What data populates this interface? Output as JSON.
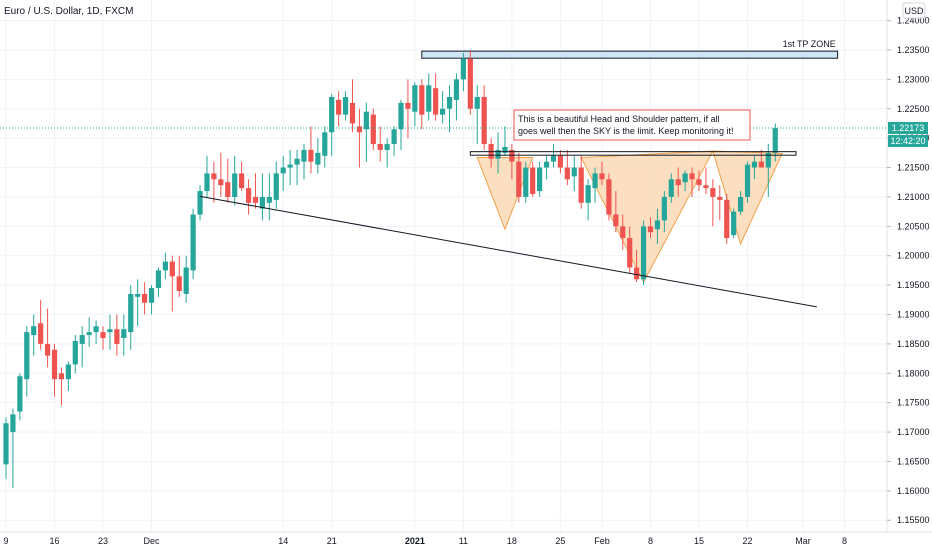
{
  "header": {
    "symbol_title": "Euro / U.S. Dollar, 1D, FXCM",
    "currency_badge": "USD"
  },
  "price_axis": {
    "ticks": [
      "1.24000",
      "1.23500",
      "1.23000",
      "1.22500",
      "1.22000",
      "1.21500",
      "1.21000",
      "1.20500",
      "1.20000",
      "1.19500",
      "1.19000",
      "1.18500",
      "1.18000",
      "1.17500",
      "1.17000",
      "1.16500",
      "1.16000",
      "1.15500"
    ],
    "tick_values": [
      1.24,
      1.235,
      1.23,
      1.225,
      1.22,
      1.215,
      1.21,
      1.205,
      1.2,
      1.195,
      1.19,
      1.185,
      1.18,
      1.175,
      1.17,
      1.165,
      1.16,
      1.155
    ],
    "last_price_label": "1.22173",
    "last_price_value": 1.22173,
    "countdown_label": "12:42:20"
  },
  "time_axis": {
    "labels": [
      "9",
      "16",
      "23",
      "Dec",
      "14",
      "21",
      "2021",
      "11",
      "18",
      "25",
      "Feb",
      "8",
      "15",
      "22",
      "Mar",
      "8"
    ],
    "bar_index": [
      0,
      7,
      14,
      21,
      40,
      47,
      59,
      66,
      73,
      80,
      86,
      93,
      100,
      107,
      115,
      121
    ]
  },
  "annotations": {
    "tp_zone_label": "1st TP ZONE",
    "tp_zone": {
      "x_from_bar": 60,
      "x_to_bar": 120,
      "price_low": 1.2336,
      "price_high": 1.2348
    },
    "neckline_zone": {
      "x_from_bar": 67,
      "x_to_bar": 114,
      "price_low": 1.2171,
      "price_high": 1.2177
    },
    "callout_lines": [
      "This is a beautiful  Head and Shoulder pattern, if all",
      "goes well then the SKY is the limit. Keep monitoring it!"
    ],
    "trendline": {
      "from_bar": 28,
      "from_price": 1.2101,
      "to_bar": 117,
      "to_price": 1.1913
    },
    "pattern_triangles": [
      {
        "bar_a": 68,
        "price_a": 1.2167,
        "bar_b": 72,
        "price_b": 1.2045,
        "bar_c": 76,
        "price_c": 1.2167
      },
      {
        "bar_a": 83,
        "price_a": 1.2167,
        "bar_b": 92,
        "price_b": 1.1955,
        "bar_c": 102,
        "price_c": 1.2178
      },
      {
        "bar_a": 102,
        "price_a": 1.2178,
        "bar_b": 106,
        "price_b": 1.202,
        "bar_c": 112,
        "price_c": 1.2174
      }
    ]
  },
  "colors": {
    "up": "#26a69a",
    "down": "#ef5350",
    "grid": "#f0f3fa",
    "axis_text": "#131722",
    "last_price_badge": "#26a69a",
    "tp_zone_fill": "#cfe6f7",
    "pattern_fill": "#fbd9b5",
    "pattern_stroke": "#f2a24a",
    "callout_border": "#ef5350"
  },
  "chart_data": {
    "type": "candlestick",
    "title": "Euro / U.S. Dollar, 1D, FXCM",
    "ylim": [
      1.153,
      1.2435
    ],
    "grid": true,
    "candles": [
      [
        1.1645,
        1.1725,
        1.162,
        1.1715
      ],
      [
        1.17,
        1.174,
        1.1605,
        1.173
      ],
      [
        1.1735,
        1.18,
        1.172,
        1.1795
      ],
      [
        1.179,
        1.188,
        1.176,
        1.187
      ],
      [
        1.1865,
        1.19,
        1.183,
        1.188
      ],
      [
        1.1885,
        1.1925,
        1.184,
        1.185
      ],
      [
        1.185,
        1.191,
        1.181,
        1.183
      ],
      [
        1.184,
        1.185,
        1.176,
        1.179
      ],
      [
        1.18,
        1.181,
        1.1745,
        1.179
      ],
      [
        1.179,
        1.182,
        1.177,
        1.1815
      ],
      [
        1.1815,
        1.1865,
        1.18,
        1.1855
      ],
      [
        1.185,
        1.188,
        1.181,
        1.1865
      ],
      [
        1.1865,
        1.1895,
        1.1845,
        1.187
      ],
      [
        1.187,
        1.189,
        1.185,
        1.188
      ],
      [
        1.187,
        1.188,
        1.184,
        1.186
      ],
      [
        1.187,
        1.19,
        1.184,
        1.1875
      ],
      [
        1.1875,
        1.19,
        1.183,
        1.185
      ],
      [
        1.186,
        1.19,
        1.183,
        1.1875
      ],
      [
        1.187,
        1.195,
        1.184,
        1.1935
      ],
      [
        1.193,
        1.196,
        1.188,
        1.1935
      ],
      [
        1.1935,
        1.1955,
        1.19,
        1.192
      ],
      [
        1.192,
        1.195,
        1.19,
        1.1945
      ],
      [
        1.1945,
        1.198,
        1.193,
        1.1975
      ],
      [
        1.1975,
        1.2005,
        1.196,
        1.199
      ],
      [
        1.199,
        1.2,
        1.1905,
        1.1965
      ],
      [
        1.1965,
        1.2,
        1.193,
        1.194
      ],
      [
        1.1935,
        1.2,
        1.192,
        1.198
      ],
      [
        1.1975,
        1.208,
        1.196,
        1.207
      ],
      [
        1.207,
        1.212,
        1.206,
        1.211
      ],
      [
        1.211,
        1.217,
        1.21,
        1.214
      ],
      [
        1.214,
        1.216,
        1.209,
        1.213
      ],
      [
        1.213,
        1.2175,
        1.21,
        1.212
      ],
      [
        1.2125,
        1.2165,
        1.209,
        1.21
      ],
      [
        1.21,
        1.217,
        1.2085,
        1.214
      ],
      [
        1.214,
        1.216,
        1.211,
        1.2115
      ],
      [
        1.2115,
        1.213,
        1.207,
        1.209
      ],
      [
        1.21,
        1.214,
        1.208,
        1.209
      ],
      [
        1.208,
        1.214,
        1.206,
        1.21
      ],
      [
        1.209,
        1.214,
        1.206,
        1.21
      ],
      [
        1.2095,
        1.216,
        1.208,
        1.214
      ],
      [
        1.214,
        1.217,
        1.211,
        1.215
      ],
      [
        1.215,
        1.218,
        1.212,
        1.2155
      ],
      [
        1.2155,
        1.218,
        1.212,
        1.2165
      ],
      [
        1.216,
        1.219,
        1.213,
        1.218
      ],
      [
        1.218,
        1.222,
        1.214,
        1.216
      ],
      [
        1.2155,
        1.22,
        1.214,
        1.2175
      ],
      [
        1.217,
        1.222,
        1.215,
        1.221
      ],
      [
        1.221,
        1.2275,
        1.217,
        1.227
      ],
      [
        1.2265,
        1.228,
        1.222,
        1.224
      ],
      [
        1.224,
        1.228,
        1.223,
        1.227
      ],
      [
        1.226,
        1.23,
        1.221,
        1.2225
      ],
      [
        1.222,
        1.225,
        1.215,
        1.221
      ],
      [
        1.2215,
        1.226,
        1.216,
        1.2245
      ],
      [
        1.224,
        1.225,
        1.218,
        1.219
      ],
      [
        1.219,
        1.222,
        1.216,
        1.218
      ],
      [
        1.218,
        1.22,
        1.215,
        1.219
      ],
      [
        1.219,
        1.222,
        1.217,
        1.2215
      ],
      [
        1.2215,
        1.2265,
        1.218,
        1.226
      ],
      [
        1.226,
        1.23,
        1.22,
        1.225
      ],
      [
        1.2245,
        1.2295,
        1.222,
        1.229
      ],
      [
        1.229,
        1.23,
        1.2215,
        1.224
      ],
      [
        1.2245,
        1.231,
        1.223,
        1.229
      ],
      [
        1.2285,
        1.231,
        1.223,
        1.224
      ],
      [
        1.224,
        1.228,
        1.2225,
        1.225
      ],
      [
        1.225,
        1.229,
        1.221,
        1.227
      ],
      [
        1.2265,
        1.231,
        1.223,
        1.23
      ],
      [
        1.23,
        1.2345,
        1.228,
        1.2335
      ],
      [
        1.2335,
        1.235,
        1.224,
        1.225
      ],
      [
        1.225,
        1.229,
        1.219,
        1.227
      ],
      [
        1.227,
        1.229,
        1.218,
        1.219
      ],
      [
        1.219,
        1.22,
        1.215,
        1.2165
      ],
      [
        1.2165,
        1.221,
        1.214,
        1.218
      ],
      [
        1.2175,
        1.222,
        1.217,
        1.2185
      ],
      [
        1.218,
        1.219,
        1.213,
        1.216
      ],
      [
        1.216,
        1.2175,
        1.209,
        1.21
      ],
      [
        1.21,
        1.216,
        1.209,
        1.215
      ],
      [
        1.215,
        1.216,
        1.21,
        1.2105
      ],
      [
        1.211,
        1.216,
        1.21,
        1.215
      ],
      [
        1.215,
        1.217,
        1.213,
        1.216
      ],
      [
        1.216,
        1.219,
        1.215,
        1.217
      ],
      [
        1.217,
        1.218,
        1.214,
        1.215
      ],
      [
        1.215,
        1.218,
        1.212,
        1.213
      ],
      [
        1.2135,
        1.217,
        1.211,
        1.215
      ],
      [
        1.215,
        1.217,
        1.208,
        1.209
      ],
      [
        1.209,
        1.213,
        1.206,
        1.212
      ],
      [
        1.2115,
        1.215,
        1.209,
        1.214
      ],
      [
        1.214,
        1.216,
        1.212,
        1.213
      ],
      [
        1.213,
        1.214,
        1.206,
        1.207
      ],
      [
        1.207,
        1.211,
        1.204,
        1.205
      ],
      [
        1.205,
        1.207,
        1.201,
        1.203
      ],
      [
        1.203,
        1.205,
        1.197,
        1.198
      ],
      [
        1.198,
        1.201,
        1.1955,
        1.196
      ],
      [
        1.196,
        1.206,
        1.195,
        1.205
      ],
      [
        1.205,
        1.2065,
        1.203,
        1.204
      ],
      [
        1.2045,
        1.208,
        1.202,
        1.206
      ],
      [
        1.206,
        1.211,
        1.204,
        1.21
      ],
      [
        1.21,
        1.214,
        1.209,
        1.213
      ],
      [
        1.213,
        1.215,
        1.21,
        1.212
      ],
      [
        1.2125,
        1.2145,
        1.211,
        1.214
      ],
      [
        1.214,
        1.215,
        1.21,
        1.213
      ],
      [
        1.213,
        1.2145,
        1.211,
        1.212
      ],
      [
        1.212,
        1.215,
        1.2105,
        1.2115
      ],
      [
        1.2115,
        1.213,
        1.205,
        1.21
      ],
      [
        1.21,
        1.212,
        1.206,
        1.2095
      ],
      [
        1.2095,
        1.2105,
        1.202,
        1.203
      ],
      [
        1.2035,
        1.208,
        1.203,
        1.2075
      ],
      [
        1.2075,
        1.211,
        1.207,
        1.21
      ],
      [
        1.21,
        1.216,
        1.209,
        1.2155
      ],
      [
        1.215,
        1.217,
        1.213,
        1.216
      ],
      [
        1.216,
        1.218,
        1.215,
        1.215
      ],
      [
        1.215,
        1.219,
        1.21,
        1.2175
      ],
      [
        1.2175,
        1.2225,
        1.216,
        1.2217
      ]
    ]
  }
}
